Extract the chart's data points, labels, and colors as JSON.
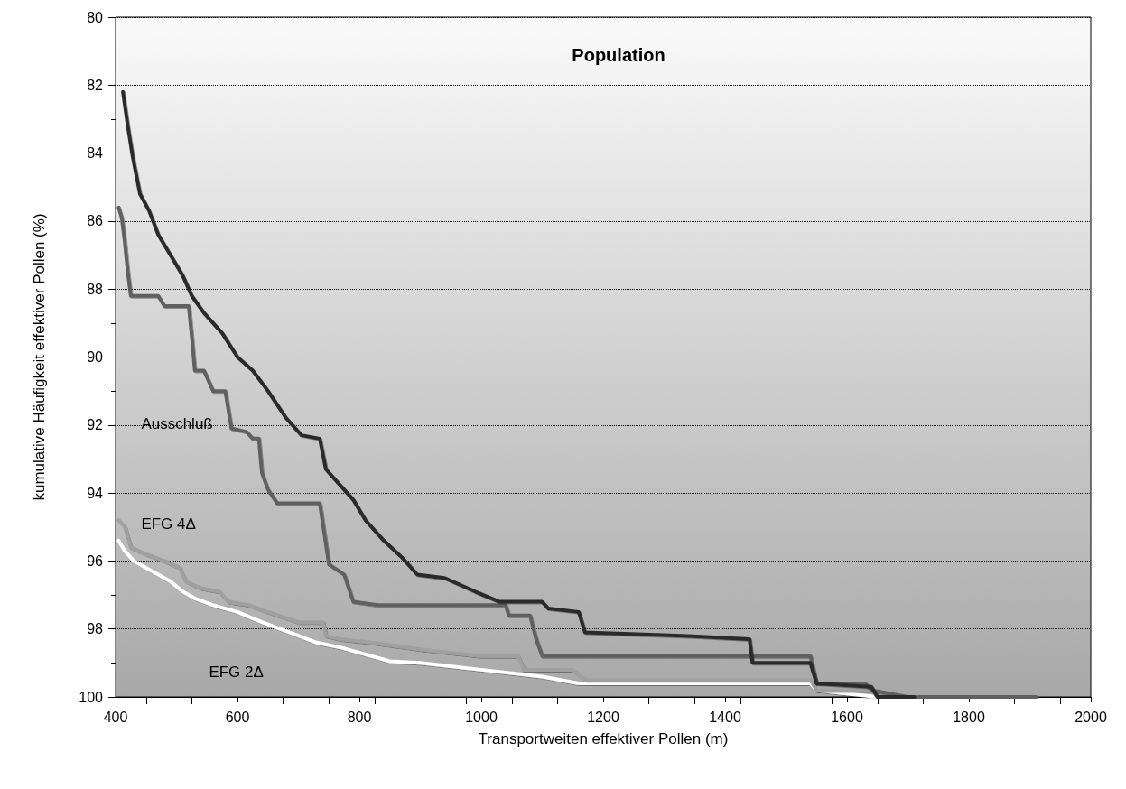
{
  "chart_data": {
    "type": "line",
    "title": "Population",
    "xlabel": "Transportweiten effektiver Pollen (m)",
    "ylabel": "kumulative Häufigkeit effektiver Pollen (%)",
    "xlim": [
      400,
      2000
    ],
    "xticks": [
      400,
      600,
      800,
      1000,
      1200,
      1400,
      1600,
      1800,
      2000
    ],
    "ylim": [
      100,
      80
    ],
    "yticks": [
      80,
      82,
      84,
      86,
      88,
      90,
      92,
      94,
      96,
      98,
      100
    ],
    "grid": "y",
    "legend": false,
    "marker": "none",
    "line_style": "solid",
    "series": [
      {
        "color": "#2b2b2b",
        "x": [
          412,
          420,
          428,
          440,
          455,
          470,
          490,
          510,
          525,
          545,
          575,
          600,
          625,
          650,
          680,
          705,
          735,
          745,
          770,
          790,
          810,
          840,
          870,
          895,
          940,
          990,
          1030,
          1100,
          1110,
          1160,
          1170,
          1330,
          1440,
          1445,
          1540,
          1550,
          1640,
          1650,
          1710
        ],
        "values": [
          82.2,
          83.2,
          84.1,
          85.2,
          85.7,
          86.4,
          87.0,
          87.6,
          88.2,
          88.7,
          89.3,
          90.0,
          90.4,
          91.0,
          91.8,
          92.3,
          92.4,
          93.3,
          93.8,
          94.2,
          94.8,
          95.4,
          95.9,
          96.4,
          96.5,
          96.9,
          97.2,
          97.2,
          97.4,
          97.5,
          98.1,
          98.2,
          98.3,
          99.0,
          99.0,
          99.6,
          99.7,
          100.0,
          100.0
        ]
      },
      {
        "name": "Ausschluß",
        "color": "#606060",
        "x": [
          405,
          410,
          415,
          420,
          425,
          470,
          480,
          520,
          525,
          530,
          545,
          560,
          580,
          590,
          615,
          625,
          635,
          640,
          650,
          665,
          735,
          745,
          750,
          775,
          790,
          830,
          850,
          1040,
          1045,
          1080,
          1090,
          1100,
          1540,
          1550,
          1630,
          1640,
          1700,
          1910
        ],
        "values": [
          85.6,
          85.9,
          86.6,
          87.5,
          88.2,
          88.2,
          88.5,
          88.5,
          89.4,
          90.4,
          90.4,
          91.0,
          91.0,
          92.1,
          92.2,
          92.4,
          92.4,
          93.4,
          93.9,
          94.3,
          94.3,
          95.5,
          96.1,
          96.4,
          97.2,
          97.3,
          97.3,
          97.3,
          97.6,
          97.6,
          98.3,
          98.8,
          98.8,
          99.6,
          99.6,
          99.8,
          100.0,
          100.0
        ]
      },
      {
        "name": "EFG 4Δ",
        "color": "#a0a0a0",
        "x": [
          405,
          415,
          425,
          450,
          480,
          505,
          515,
          540,
          570,
          585,
          620,
          650,
          700,
          740,
          745,
          770,
          820,
          900,
          1000,
          1060,
          1070,
          1150,
          1170,
          1540,
          1550,
          1640,
          1650
        ],
        "values": [
          94.8,
          95.0,
          95.6,
          95.8,
          96.0,
          96.2,
          96.6,
          96.8,
          96.9,
          97.2,
          97.3,
          97.5,
          97.8,
          97.8,
          98.2,
          98.3,
          98.4,
          98.6,
          98.8,
          98.8,
          99.2,
          99.2,
          99.5,
          99.5,
          99.8,
          99.8,
          100.0
        ]
      },
      {
        "name": "EFG 2Δ",
        "color": "#ffffff",
        "x": [
          405,
          415,
          430,
          460,
          490,
          510,
          530,
          560,
          600,
          640,
          670,
          700,
          730,
          770,
          850,
          900,
          1000,
          1100,
          1160,
          1540,
          1550,
          1650
        ],
        "values": [
          95.4,
          95.7,
          96.0,
          96.3,
          96.6,
          96.9,
          97.1,
          97.3,
          97.5,
          97.8,
          98.0,
          98.2,
          98.4,
          98.55,
          98.95,
          99.0,
          99.2,
          99.4,
          99.6,
          99.6,
          99.8,
          100.0
        ]
      }
    ]
  }
}
